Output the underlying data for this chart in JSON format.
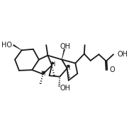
{
  "background_color": "#ffffff",
  "line_color": "#1a1a1a",
  "bond_lw": 1.3,
  "font_size": 7.0,
  "font_size_small": 6.0,
  "fig_width": 1.82,
  "fig_height": 1.63,
  "dpi": 100,
  "xlim": [
    -0.5,
    10.5
  ],
  "ylim": [
    0.5,
    9.0
  ]
}
